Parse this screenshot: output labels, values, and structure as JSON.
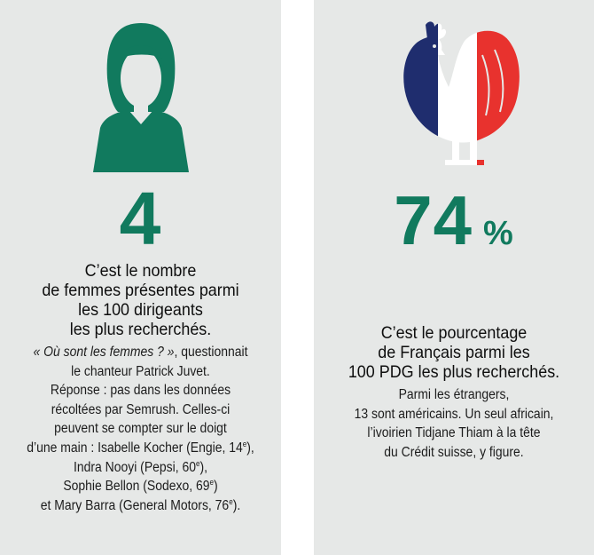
{
  "left": {
    "icon": "woman-icon",
    "big_number": "4",
    "headline_lines": [
      "C’est le nombre",
      "de femmes présentes parmi",
      "les 100 dirigeants",
      "les plus recherchés."
    ],
    "body": {
      "quote": "« Où sont les femmes ? »",
      "l1_rest": ", questionnait",
      "l2": "le chanteur Patrick Juvet.",
      "l3": "Réponse : pas dans les données",
      "l4": "récoltées par Semrush. Celles-ci",
      "l5": "peuvent se compter sur le doigt",
      "l6a": "d’une main : Isabelle Kocher (Engie, 14",
      "l6sup": "e",
      "l6b": "),",
      "l7a": "Indra Nooyi (Pepsi, 60",
      "l7sup": "e",
      "l7b": "),",
      "l8a": "Sophie Bellon (Sodexo, 69",
      "l8sup": "e",
      "l8b": ")",
      "l9a": "et Mary Barra (General Motors, 76",
      "l9sup": "e",
      "l9b": ")."
    }
  },
  "right": {
    "icon": "french-rooster-icon",
    "big_number": "74",
    "big_unit": "%",
    "headline_lines": [
      "C’est le pourcentage",
      "de Français parmi les",
      "100 PDG les plus recherchés."
    ],
    "body_lines": [
      "Parmi les étrangers,",
      "13 sont américains. Un seul africain,",
      "l’ivoirien Tidjane Thiam à la tête",
      "du Crédit suisse, y figure."
    ]
  },
  "colors": {
    "panel_bg": "#e6e8e7",
    "accent_green": "#117a5e",
    "flag_blue": "#1f2d6e",
    "flag_white": "#ffffff",
    "flag_red": "#e8322e"
  }
}
